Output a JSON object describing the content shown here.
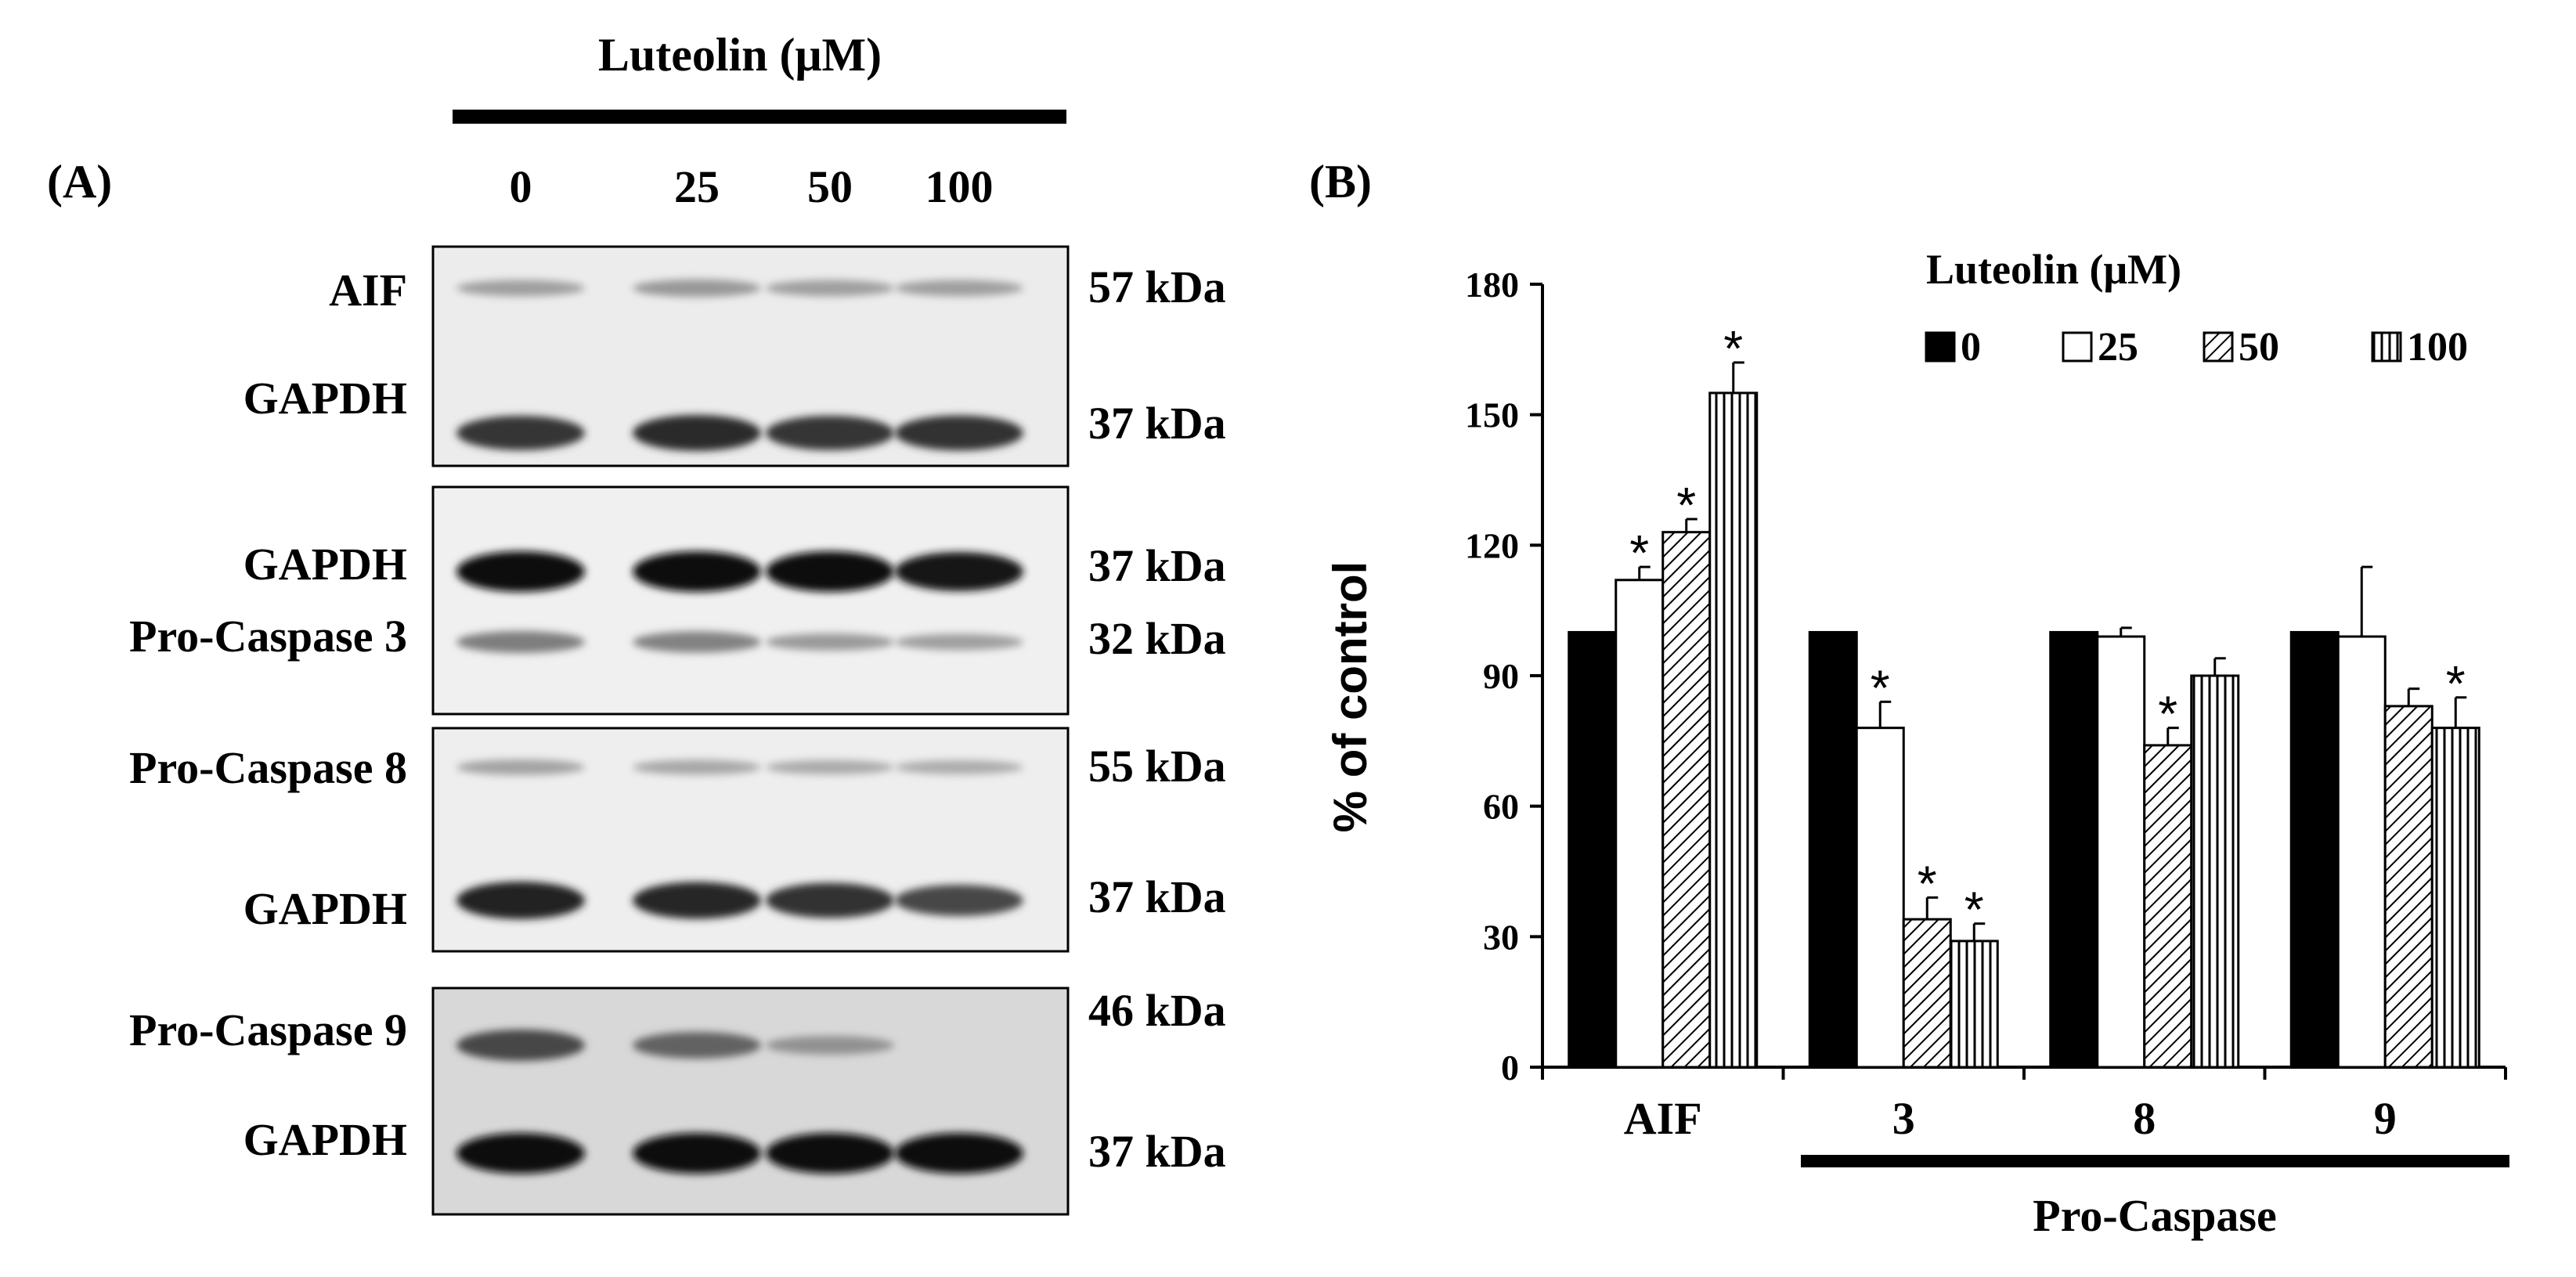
{
  "panel_a": {
    "panel_label": "(A)",
    "treatment_label": "Luteolin (μM)",
    "lane_labels": [
      "0",
      "25",
      "50",
      "100"
    ],
    "blots": [
      {
        "bands": [
          {
            "protein": "AIF",
            "mw": "57 kDa",
            "intensity": [
              0.22,
              0.26,
              0.22,
              0.22
            ]
          },
          {
            "protein": "GAPDH",
            "mw": "37 kDa",
            "intensity": [
              0.8,
              0.85,
              0.8,
              0.82
            ]
          }
        ]
      },
      {
        "bands": [
          {
            "protein": "GAPDH",
            "mw": "37 kDa",
            "intensity": [
              1.0,
              1.0,
              1.0,
              0.95
            ]
          },
          {
            "protein": "Pro-Caspase 3",
            "mw": "32 kDa",
            "intensity": [
              0.4,
              0.38,
              0.25,
              0.22
            ]
          }
        ]
      },
      {
        "bands": [
          {
            "protein": "Pro-Caspase 8",
            "mw": "55 kDa",
            "intensity": [
              0.2,
              0.18,
              0.16,
              0.15
            ]
          },
          {
            "protein": "GAPDH",
            "mw": "37 kDa",
            "intensity": [
              0.9,
              0.88,
              0.82,
              0.7
            ]
          }
        ]
      },
      {
        "bands": [
          {
            "protein": "Pro-Caspase 9",
            "mw": "46 kDa",
            "intensity": [
              0.7,
              0.55,
              0.3,
              0.0
            ]
          },
          {
            "protein": "GAPDH",
            "mw": "37 kDa",
            "intensity": [
              1.0,
              1.0,
              1.0,
              1.0
            ]
          }
        ]
      }
    ]
  },
  "panel_b": {
    "panel_label": "(B)",
    "group_label": "Pro-Caspase"
  },
  "chart_data": {
    "type": "bar",
    "categories": [
      "AIF",
      "3",
      "8",
      "9"
    ],
    "ylabel": "% of control",
    "xlabel": "",
    "ylim": [
      0,
      180
    ],
    "yticks": [
      0,
      30,
      60,
      90,
      120,
      150,
      180
    ],
    "legend_title": "Luteolin (μM)",
    "legend_position": "top-right",
    "grid": false,
    "series": [
      {
        "name": "0",
        "fill": "solid",
        "values": [
          100,
          100,
          100,
          100
        ],
        "errors": [
          0,
          0,
          0,
          0
        ],
        "significant": [
          false,
          false,
          false,
          false
        ]
      },
      {
        "name": "25",
        "fill": "white",
        "values": [
          112,
          78,
          99,
          99
        ],
        "errors": [
          3,
          6,
          2,
          16
        ],
        "significant": [
          true,
          true,
          false,
          false
        ]
      },
      {
        "name": "50",
        "fill": "diagonal",
        "values": [
          123,
          34,
          74,
          83
        ],
        "errors": [
          3,
          5,
          4,
          4
        ],
        "significant": [
          true,
          true,
          true,
          false
        ]
      },
      {
        "name": "100",
        "fill": "vertical",
        "values": [
          155,
          29,
          90,
          78
        ],
        "errors": [
          7,
          4,
          4,
          7
        ],
        "significant": [
          true,
          true,
          false,
          true
        ]
      }
    ],
    "significance_marker": "*"
  }
}
